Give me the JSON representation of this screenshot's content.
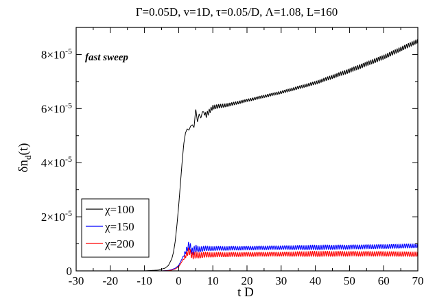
{
  "chart_data": {
    "type": "line",
    "title": "Γ=0.05D, v=1D, τ=0.05/D, Λ=1.08, L=160",
    "xlabel": "t D",
    "ylabel_main": "δn",
    "ylabel_sub": "d",
    "ylabel_tail": "(t)",
    "annotation": "fast sweep",
    "xlim": [
      -30,
      70
    ],
    "ylim": [
      0,
      9e-05
    ],
    "grid": false,
    "legend_position": "bottom-left",
    "x_ticks": [
      {
        "value": -30,
        "label": "-30"
      },
      {
        "value": -20,
        "label": "-20"
      },
      {
        "value": -10,
        "label": "-10"
      },
      {
        "value": 0,
        "label": "0"
      },
      {
        "value": 10,
        "label": "10"
      },
      {
        "value": 20,
        "label": "20"
      },
      {
        "value": 30,
        "label": "30"
      },
      {
        "value": 40,
        "label": "40"
      },
      {
        "value": 50,
        "label": "50"
      },
      {
        "value": 60,
        "label": "60"
      },
      {
        "value": 70,
        "label": "70"
      }
    ],
    "y_ticks": [
      {
        "value": 0,
        "mant": "0",
        "exp": ""
      },
      {
        "value": 2e-05,
        "mant": "2×10",
        "exp": "-5"
      },
      {
        "value": 4e-05,
        "mant": "4×10",
        "exp": "-5"
      },
      {
        "value": 6e-05,
        "mant": "6×10",
        "exp": "-5"
      },
      {
        "value": 8e-05,
        "mant": "8×10",
        "exp": "-5"
      }
    ],
    "series": [
      {
        "name": "χ=100",
        "color": "#000000",
        "x": [
          -30,
          -10,
          -6,
          -4,
          -3,
          -2,
          -1.5,
          -1,
          -0.5,
          0,
          0.5,
          1,
          1.5,
          2,
          2.5,
          3,
          3.5,
          4,
          4.5,
          5,
          5.5,
          6,
          6.5,
          7,
          8,
          10,
          15,
          20,
          30,
          40,
          50,
          60,
          70
        ],
        "y": [
          0,
          0,
          3e-07,
          1e-06,
          2e-06,
          4.5e-06,
          7e-06,
          1.1e-05,
          1.7e-05,
          2.4e-05,
          3.2e-05,
          4e-05,
          4.7e-05,
          5.1e-05,
          5.25e-05,
          5.2e-05,
          5.35e-05,
          5.4e-05,
          5.3e-05,
          6e-05,
          5.5e-05,
          5.8e-05,
          5.65e-05,
          5.9e-05,
          5.75e-05,
          6.05e-05,
          6.15e-05,
          6.3e-05,
          6.6e-05,
          6.95e-05,
          7.4e-05,
          7.9e-05,
          8.5e-05
        ],
        "osc": [
          0,
          0,
          0,
          0,
          0,
          0,
          0,
          0,
          0,
          0,
          0,
          0,
          0,
          0,
          0,
          0,
          0,
          0,
          0,
          0,
          0,
          0,
          0,
          0,
          1e-06,
          8e-07,
          6e-07,
          5e-07,
          5e-07,
          6e-07,
          8e-07,
          8e-07,
          8e-07
        ]
      },
      {
        "name": "χ=150",
        "color": "#0000ff",
        "x": [
          -30,
          -10,
          -5,
          -3,
          -2,
          -1,
          0,
          1,
          2,
          3,
          3.5,
          4,
          5,
          6,
          8,
          10,
          20,
          30,
          40,
          50,
          60,
          70
        ],
        "y": [
          0,
          0,
          0,
          2e-07,
          5e-07,
          1e-06,
          2e-06,
          4.5e-06,
          7e-06,
          9.5e-06,
          8.5e-06,
          7e-06,
          8.5e-06,
          8e-06,
          8.3e-06,
          8.3e-06,
          8.4e-06,
          8.6e-06,
          8.7e-06,
          8.8e-06,
          9e-06,
          9.3e-06
        ],
        "osc": [
          0,
          0,
          0,
          0,
          0,
          0,
          0,
          0,
          8e-07,
          1.5e-06,
          1.5e-06,
          1.5e-06,
          1.2e-06,
          1e-06,
          9e-07,
          8e-07,
          7e-07,
          7e-07,
          9e-07,
          8e-07,
          8e-07,
          8e-07
        ]
      },
      {
        "name": "χ=200",
        "color": "#ff0000",
        "x": [
          -30,
          -10,
          -5,
          -3,
          -2,
          -1,
          0,
          1,
          2,
          3,
          3.5,
          4,
          5,
          6,
          8,
          10,
          20,
          30,
          40,
          50,
          60,
          70
        ],
        "y": [
          0,
          0,
          0,
          1e-07,
          3e-07,
          7e-07,
          1.5e-06,
          3.5e-06,
          5.5e-06,
          7.5e-06,
          6.5e-06,
          5.5e-06,
          6e-06,
          5.8e-06,
          6e-06,
          6e-06,
          6.1e-06,
          6.2e-06,
          6.3e-06,
          6.3e-06,
          6.3e-06,
          6.2e-06
        ],
        "osc": [
          0,
          0,
          0,
          0,
          0,
          0,
          0,
          0,
          8e-07,
          1.3e-06,
          1.3e-06,
          1.3e-06,
          1.2e-06,
          1.1e-06,
          1e-06,
          9e-07,
          8e-07,
          8e-07,
          1e-06,
          9e-07,
          9e-07,
          9e-07
        ]
      }
    ]
  }
}
